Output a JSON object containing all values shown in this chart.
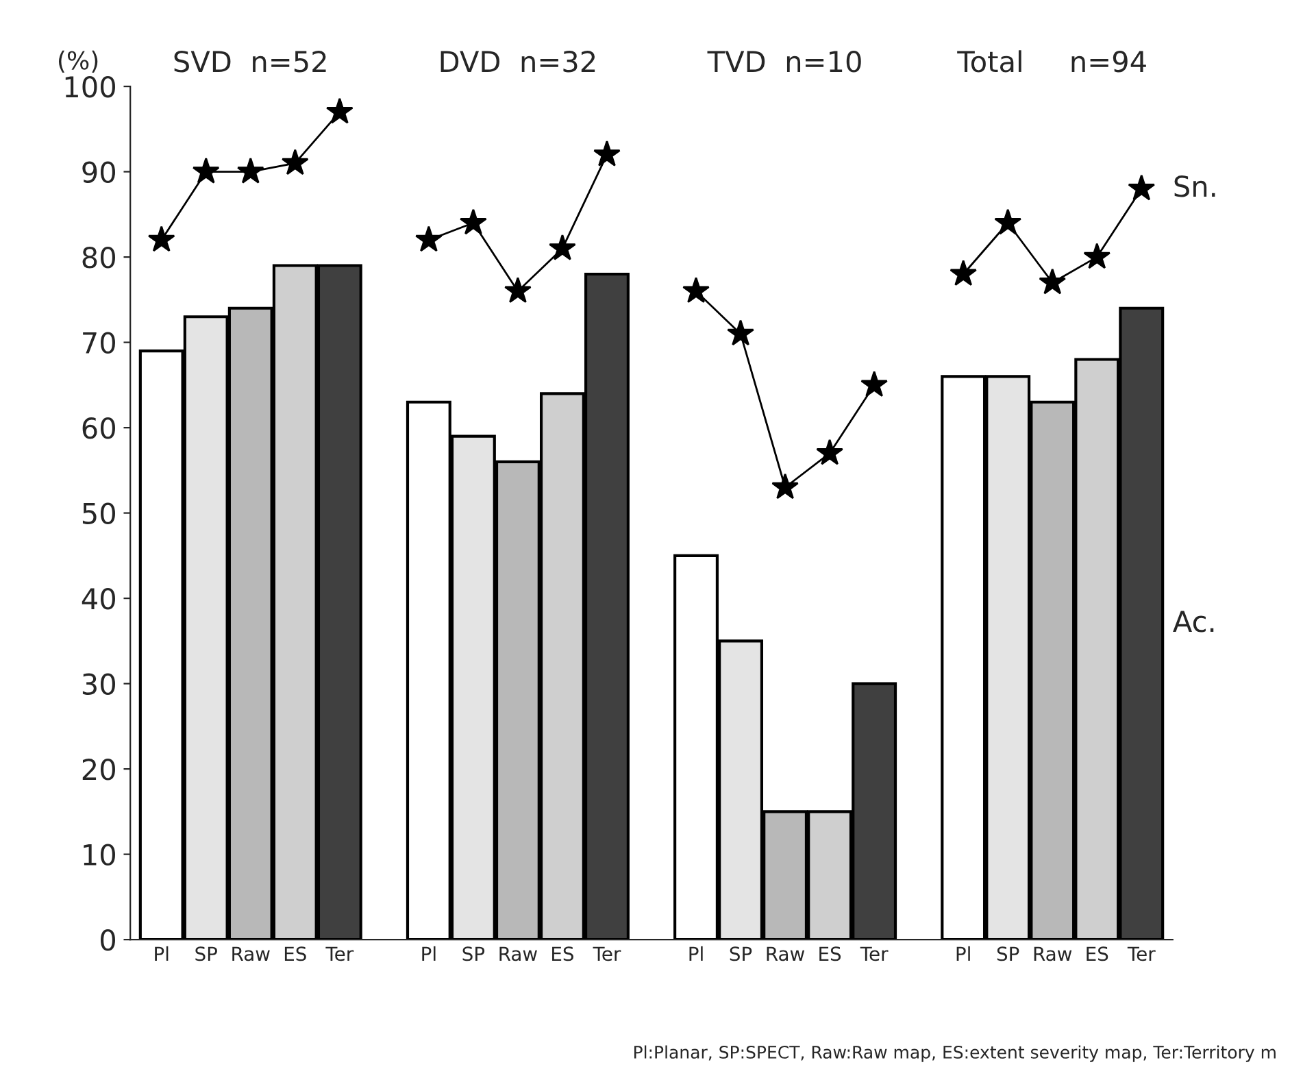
{
  "chart_data": {
    "type": "bar",
    "ylabel": "(%)",
    "categories": [
      "Pl",
      "SP",
      "Raw",
      "ES",
      "Ter",
      null,
      "Pl",
      "SP",
      "Raw",
      "ES",
      "Ter",
      null,
      "Pl",
      "SP",
      "Raw",
      "ES",
      "Ter",
      null,
      "Pl",
      "SP",
      "Raw",
      "ES",
      "Ter"
    ],
    "series": [
      {
        "name": "Ac.",
        "colors": [
          "#ffffff",
          "#e4e4e4",
          "#b8b8b8",
          "#cfcfcf",
          "#404040",
          null,
          "#ffffff",
          "#e4e4e4",
          "#b8b8b8",
          "#cfcfcf",
          "#404040",
          null,
          "#ffffff",
          "#e4e4e4",
          "#b8b8b8",
          "#cfcfcf",
          "#404040",
          null,
          "#ffffff",
          "#e4e4e4",
          "#b8b8b8",
          "#cfcfcf",
          "#404040"
        ],
        "values": [
          69,
          73,
          74,
          79,
          79,
          null,
          63,
          59,
          56,
          64,
          78,
          null,
          45,
          35,
          15,
          15,
          30,
          null,
          66,
          66,
          63,
          68,
          74
        ]
      },
      {
        "name": "Sn.",
        "type": "line",
        "color": "#000000",
        "marker": "star",
        "values": [
          82,
          90,
          90,
          91,
          97,
          null,
          82,
          84,
          76,
          81,
          92,
          null,
          76,
          71,
          53,
          57,
          65,
          null,
          78,
          84,
          77,
          80,
          88
        ]
      }
    ],
    "ylim": [
      0,
      100
    ],
    "yticks": [
      0,
      10,
      20,
      30,
      40,
      50,
      60,
      70,
      80,
      90,
      100
    ],
    "legend": false,
    "grid": false,
    "annotations": [
      "SVD  n=52",
      "DVD  n=32",
      "TVD  n=10",
      "Total     n=94",
      "Pl:Planar, SP:SPECT, Raw:Raw map, ES:extent severity map, Ter:Territory m"
    ]
  }
}
